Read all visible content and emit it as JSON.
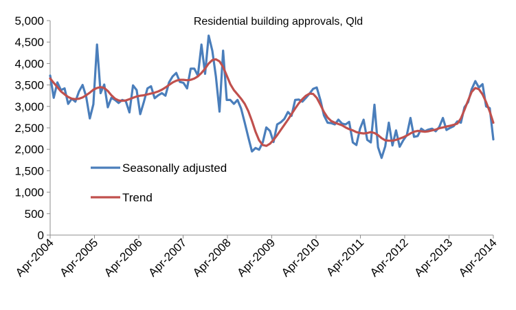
{
  "chart_data": {
    "type": "line",
    "title": "Residential building approvals, Qld",
    "xlabel": "",
    "ylabel": "",
    "ylim": [
      0,
      5000
    ],
    "y_ticks": [
      "0",
      "500",
      "1,000",
      "1,500",
      "2,000",
      "2,500",
      "3,000",
      "3,500",
      "4,000",
      "4,500",
      "5,000"
    ],
    "x_tick_labels": [
      "Apr-2004",
      "Apr-2005",
      "Apr-2006",
      "Apr-2007",
      "Apr-2008",
      "Apr-2009",
      "Apr-2010",
      "Apr-2011",
      "Apr-2012",
      "Apr-2013",
      "Apr-2014"
    ],
    "x_start": "Apr-2004",
    "x_end": "Apr-2014",
    "legend_position": "center-left",
    "series": [
      {
        "name": "Seasonally adjusted",
        "color": "#4a7ebb",
        "values": [
          3720,
          3200,
          3560,
          3380,
          3420,
          3060,
          3180,
          3110,
          3350,
          3500,
          3230,
          2720,
          3050,
          4440,
          3310,
          3510,
          2980,
          3200,
          3150,
          3080,
          3150,
          3120,
          2860,
          3490,
          3380,
          2820,
          3100,
          3420,
          3470,
          3190,
          3260,
          3310,
          3250,
          3560,
          3700,
          3780,
          3570,
          3550,
          3420,
          3880,
          3880,
          3720,
          4440,
          3760,
          4650,
          4300,
          3700,
          2880,
          4300,
          3150,
          3150,
          3060,
          3150,
          2950,
          2620,
          2280,
          1950,
          2030,
          1990,
          2160,
          2510,
          2430,
          2170,
          2580,
          2630,
          2710,
          2870,
          2780,
          3150,
          3160,
          3110,
          3200,
          3300,
          3410,
          3440,
          3150,
          2790,
          2620,
          2610,
          2580,
          2690,
          2600,
          2580,
          2640,
          2160,
          2100,
          2480,
          2690,
          2220,
          2160,
          3040,
          2050,
          1800,
          2070,
          2620,
          2090,
          2440,
          2060,
          2210,
          2330,
          2730,
          2290,
          2310,
          2480,
          2420,
          2460,
          2480,
          2420,
          2520,
          2730,
          2450,
          2500,
          2540,
          2650,
          2620,
          2980,
          3100,
          3400,
          3590,
          3440,
          3520,
          3000,
          2960,
          2230
        ]
      },
      {
        "name": "Trend",
        "color": "#c0504d",
        "values": [
          3650,
          3550,
          3450,
          3350,
          3280,
          3220,
          3180,
          3170,
          3180,
          3210,
          3260,
          3320,
          3390,
          3430,
          3450,
          3430,
          3360,
          3260,
          3180,
          3140,
          3130,
          3140,
          3170,
          3200,
          3230,
          3250,
          3260,
          3280,
          3300,
          3320,
          3350,
          3390,
          3440,
          3500,
          3560,
          3600,
          3620,
          3620,
          3610,
          3620,
          3650,
          3700,
          3780,
          3880,
          4000,
          4080,
          4100,
          4050,
          3920,
          3720,
          3520,
          3380,
          3280,
          3180,
          3060,
          2890,
          2660,
          2410,
          2210,
          2100,
          2080,
          2130,
          2220,
          2330,
          2450,
          2570,
          2690,
          2820,
          2950,
          3070,
          3170,
          3250,
          3300,
          3290,
          3200,
          3040,
          2870,
          2740,
          2660,
          2620,
          2590,
          2560,
          2510,
          2470,
          2440,
          2400,
          2380,
          2370,
          2380,
          2400,
          2380,
          2330,
          2260,
          2210,
          2200,
          2200,
          2220,
          2250,
          2280,
          2320,
          2370,
          2410,
          2430,
          2420,
          2410,
          2420,
          2440,
          2460,
          2490,
          2510,
          2530,
          2550,
          2570,
          2600,
          2720,
          2920,
          3140,
          3340,
          3430,
          3400,
          3280,
          3100,
          2880,
          2620
        ]
      }
    ]
  }
}
